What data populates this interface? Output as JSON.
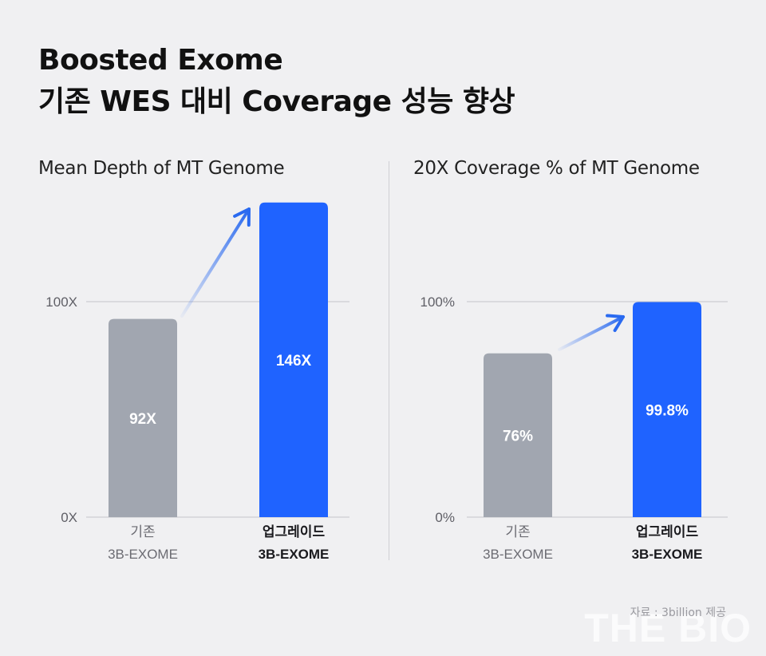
{
  "title": {
    "line1": "Boosted Exome",
    "line2": "기존 WES 대비 Coverage 성능 향상"
  },
  "source": "자료 : 3billion 제공",
  "watermark": "THE BIO",
  "colors": {
    "old_bar": "#a1a6b0",
    "new_bar": "#1f63ff",
    "grid": "#c4c4ca",
    "arrow": "#2a6af0"
  },
  "chart_data": [
    {
      "type": "bar",
      "title": "Mean Depth of MT Genome",
      "categories": [
        {
          "line1": "기존",
          "line2": "3B-EXOME"
        },
        {
          "line1": "업그레이드",
          "line2": "3B-EXOME"
        }
      ],
      "values": [
        92,
        146
      ],
      "value_labels": [
        "92X",
        "146X"
      ],
      "yticks": [
        {
          "value": 0,
          "label": "0X"
        },
        {
          "value": 100,
          "label": "100X"
        }
      ],
      "ylim": [
        0,
        146
      ]
    },
    {
      "type": "bar",
      "title": "20X Coverage % of MT Genome",
      "categories": [
        {
          "line1": "기존",
          "line2": "3B-EXOME"
        },
        {
          "line1": "업그레이드",
          "line2": "3B-EXOME"
        }
      ],
      "values": [
        76,
        99.8
      ],
      "value_labels": [
        "76%",
        "99.8%"
      ],
      "yticks": [
        {
          "value": 0,
          "label": "0%"
        },
        {
          "value": 100,
          "label": "100%"
        }
      ],
      "ylim": [
        0,
        100
      ]
    }
  ]
}
